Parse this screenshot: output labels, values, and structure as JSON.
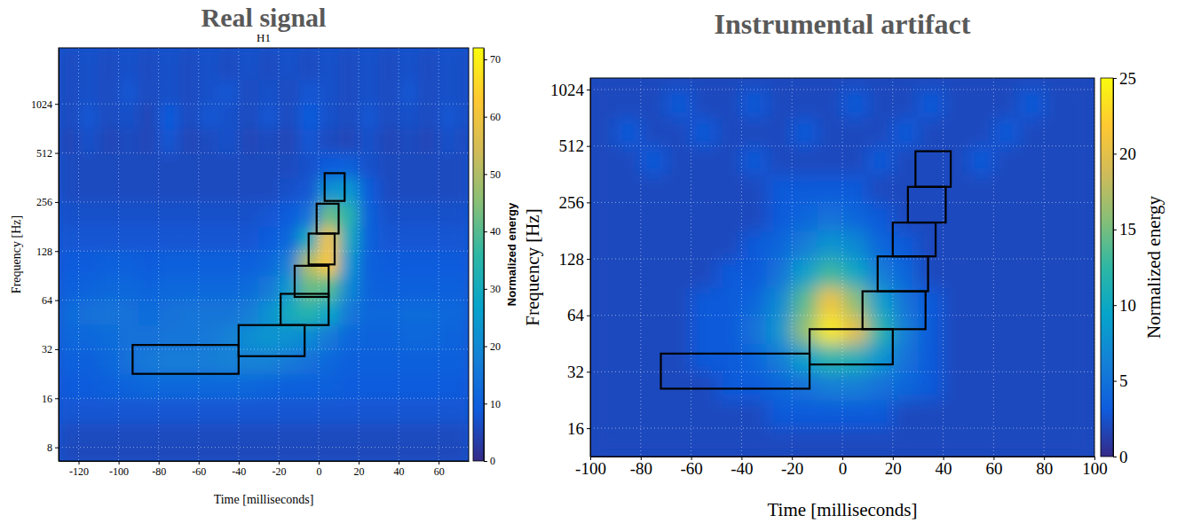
{
  "chart_data": [
    {
      "type": "heatmap",
      "title": "Real signal",
      "subtitle": "H1",
      "x_label": "Time [milliseconds]",
      "y_label": "Frequency [Hz]",
      "log": "y",
      "grid": true,
      "xlim": [
        -130,
        75
      ],
      "xticks": [
        -120,
        -100,
        -80,
        -60,
        -40,
        -20,
        0,
        20,
        40,
        60
      ],
      "ylim": [
        6.6,
        2260
      ],
      "yticks": [
        8,
        16,
        32,
        64,
        128,
        256,
        512,
        1024
      ],
      "xbins": [
        -130,
        -120,
        -110,
        -100,
        -90,
        -80,
        -70,
        -60,
        -50,
        -40,
        -30,
        -20,
        -10,
        0,
        10,
        20,
        30,
        40,
        50,
        60,
        70,
        75
      ],
      "ybins": [
        6.6,
        8,
        11.3,
        16,
        22.6,
        32,
        45.3,
        64,
        90.5,
        128,
        181,
        256,
        362,
        512,
        724,
        1024,
        1448,
        2260
      ],
      "cells": [
        [
          5,
          5,
          5,
          5,
          5,
          5,
          5,
          5,
          5,
          5,
          5,
          5,
          5,
          5,
          5,
          5,
          5,
          5,
          5,
          5,
          5
        ],
        [
          6,
          6,
          6,
          6,
          6,
          6,
          6,
          6,
          6,
          6,
          6,
          6,
          6,
          6,
          6,
          6,
          6,
          6,
          6,
          6,
          6
        ],
        [
          8,
          8,
          8,
          8,
          8,
          8,
          8,
          8,
          8,
          8,
          8,
          8,
          8,
          8,
          8,
          8,
          8,
          8,
          8,
          8,
          8
        ],
        [
          9,
          9,
          10,
          11,
          12,
          12,
          12,
          12,
          12,
          12,
          11,
          10,
          10,
          10,
          9,
          9,
          9,
          9,
          9,
          9,
          9
        ],
        [
          10,
          10,
          12,
          14,
          16,
          17,
          17,
          17,
          18,
          18,
          18,
          16,
          14,
          12,
          10,
          10,
          10,
          10,
          10,
          10,
          10
        ],
        [
          12,
          12,
          13,
          14,
          14,
          15,
          15,
          16,
          18,
          21,
          23,
          22,
          20,
          16,
          12,
          11,
          11,
          12,
          12,
          11,
          11
        ],
        [
          13,
          14,
          15,
          14,
          13,
          14,
          15,
          15,
          15,
          17,
          22,
          30,
          34,
          28,
          16,
          12,
          12,
          13,
          13,
          12,
          12
        ],
        [
          10,
          11,
          12,
          12,
          11,
          12,
          12,
          12,
          12,
          13,
          16,
          24,
          42,
          40,
          20,
          11,
          10,
          10,
          10,
          10,
          10
        ],
        [
          9,
          9,
          10,
          10,
          9,
          10,
          10,
          10,
          10,
          10,
          12,
          18,
          50,
          62,
          24,
          10,
          9,
          9,
          9,
          9,
          9
        ],
        [
          8,
          8,
          8,
          8,
          8,
          8,
          8,
          8,
          8,
          8,
          9,
          12,
          30,
          60,
          30,
          10,
          8,
          8,
          8,
          8,
          8
        ],
        [
          7,
          7,
          7,
          7,
          7,
          7,
          7,
          7,
          7,
          7,
          8,
          9,
          14,
          42,
          34,
          10,
          7,
          7,
          7,
          7,
          7
        ],
        [
          6,
          6,
          6,
          6,
          6,
          6,
          6,
          6,
          6,
          6,
          6,
          7,
          8,
          22,
          24,
          9,
          6,
          6,
          6,
          6,
          6
        ],
        [
          6,
          6,
          6,
          6,
          6,
          6,
          6,
          6,
          6,
          6,
          6,
          6,
          7,
          9,
          10,
          7,
          6,
          6,
          6,
          6,
          6
        ],
        [
          5,
          7,
          5,
          6,
          5,
          8,
          5,
          6,
          7,
          5,
          6,
          5,
          8,
          6,
          5,
          7,
          5,
          6,
          5,
          7,
          5
        ],
        [
          6,
          8,
          6,
          7,
          5,
          9,
          6,
          8,
          7,
          6,
          8,
          6,
          9,
          7,
          6,
          8,
          6,
          7,
          6,
          8,
          6
        ],
        [
          6,
          7,
          6,
          8,
          6,
          7,
          6,
          7,
          8,
          6,
          7,
          6,
          8,
          7,
          6,
          7,
          6,
          8,
          6,
          7,
          6
        ],
        [
          6,
          7,
          6,
          7,
          6,
          7,
          6,
          7,
          6,
          7,
          6,
          7,
          6,
          7,
          6,
          7,
          6,
          7,
          6,
          7,
          6
        ]
      ],
      "colorbar": {
        "label": "Normalized energy",
        "range": [
          0,
          72
        ],
        "ticks": [
          0,
          10,
          20,
          30,
          40,
          50,
          60,
          70
        ]
      },
      "boxes": [
        {
          "t0": -93,
          "t1": -40,
          "f0": 22.6,
          "f1": 34
        },
        {
          "t0": -40,
          "t1": -7,
          "f0": 29,
          "f1": 45
        },
        {
          "t0": -19,
          "t1": 5,
          "f0": 45,
          "f1": 70
        },
        {
          "t0": -12,
          "t1": 5,
          "f0": 67,
          "f1": 104
        },
        {
          "t0": -5,
          "t1": 8,
          "f0": 106,
          "f1": 164
        },
        {
          "t0": -1,
          "t1": 10,
          "f0": 164,
          "f1": 250
        },
        {
          "t0": 3,
          "t1": 13,
          "f0": 260,
          "f1": 385
        }
      ]
    },
    {
      "type": "heatmap",
      "title": "Instrumental artifact",
      "x_label": "Time [milliseconds]",
      "y_label": "Frequency [Hz]",
      "log": "y",
      "grid": true,
      "xlim": [
        -100,
        100
      ],
      "xticks": [
        -100,
        -80,
        -60,
        -40,
        -20,
        0,
        20,
        40,
        60,
        80,
        100
      ],
      "ylim": [
        11.3,
        1180
      ],
      "yticks": [
        16,
        32,
        64,
        128,
        256,
        512,
        1024
      ],
      "xbins": [
        -100,
        -90,
        -80,
        -70,
        -60,
        -50,
        -40,
        -30,
        -20,
        -10,
        0,
        10,
        20,
        30,
        40,
        50,
        60,
        70,
        80,
        90,
        100
      ],
      "ybins": [
        11.3,
        16,
        22.6,
        32,
        45.3,
        64,
        90.5,
        128,
        181,
        256,
        362,
        512,
        724,
        1024,
        1180
      ],
      "cells": [
        [
          2,
          2,
          2,
          2,
          2,
          2,
          2,
          2,
          2,
          2,
          2,
          2,
          2,
          2,
          2,
          2,
          2,
          2,
          2,
          2
        ],
        [
          2,
          2,
          2,
          2,
          2,
          2,
          2,
          3,
          3,
          3,
          3,
          3,
          2,
          2,
          2,
          2,
          2,
          2,
          2,
          2
        ],
        [
          2,
          2,
          2,
          2,
          2,
          3,
          3,
          4,
          5,
          6,
          6,
          5,
          4,
          3,
          2,
          2,
          2,
          2,
          2,
          2
        ],
        [
          2,
          2,
          2,
          2,
          3,
          3,
          4,
          6,
          9,
          12,
          11,
          8,
          5,
          3,
          2,
          2,
          2,
          2,
          2,
          2
        ],
        [
          2,
          2,
          2,
          2,
          3,
          3,
          5,
          8,
          16,
          24,
          20,
          12,
          6,
          3,
          2,
          2,
          2,
          2,
          2,
          2
        ],
        [
          2,
          2,
          2,
          2,
          3,
          3,
          4,
          7,
          14,
          21,
          16,
          9,
          5,
          3,
          2,
          2,
          2,
          2,
          2,
          2
        ],
        [
          2,
          2,
          2,
          2,
          2,
          3,
          3,
          5,
          9,
          13,
          10,
          6,
          4,
          2,
          2,
          2,
          2,
          2,
          2,
          2
        ],
        [
          2,
          2,
          2,
          2,
          2,
          2,
          3,
          4,
          6,
          8,
          7,
          4,
          3,
          2,
          2,
          2,
          2,
          2,
          2,
          2
        ],
        [
          2,
          2,
          2,
          2,
          2,
          2,
          2,
          3,
          4,
          5,
          4,
          3,
          2,
          2,
          2,
          2,
          2,
          2,
          2,
          2
        ],
        [
          2,
          2,
          2,
          2,
          2,
          2,
          2,
          3,
          3,
          3,
          3,
          2,
          2,
          2,
          2,
          2,
          2,
          2,
          2,
          2
        ],
        [
          2,
          2,
          3,
          2,
          2,
          2,
          3,
          2,
          2,
          2,
          2,
          3,
          2,
          2,
          2,
          3,
          2,
          2,
          2,
          2
        ],
        [
          2,
          3,
          2,
          2,
          3,
          2,
          2,
          2,
          3,
          2,
          2,
          2,
          3,
          2,
          2,
          2,
          3,
          2,
          2,
          2
        ],
        [
          2,
          2,
          2,
          3,
          2,
          2,
          3,
          2,
          2,
          2,
          3,
          2,
          2,
          3,
          2,
          2,
          2,
          3,
          2,
          2
        ],
        [
          2,
          2,
          2,
          2,
          2,
          2,
          2,
          2,
          2,
          2,
          2,
          2,
          2,
          2,
          2,
          2,
          2,
          2,
          2,
          2
        ]
      ],
      "colorbar": {
        "label": "Normalized energy",
        "range": [
          0,
          25
        ],
        "ticks": [
          0,
          5,
          10,
          15,
          20,
          25
        ]
      },
      "boxes": [
        {
          "t0": -72,
          "t1": -13,
          "f0": 26,
          "f1": 40
        },
        {
          "t0": -13,
          "t1": 20,
          "f0": 35,
          "f1": 54
        },
        {
          "t0": 8,
          "t1": 33,
          "f0": 54,
          "f1": 86
        },
        {
          "t0": 14,
          "t1": 34,
          "f0": 86,
          "f1": 132
        },
        {
          "t0": 20,
          "t1": 37,
          "f0": 132,
          "f1": 200
        },
        {
          "t0": 26,
          "t1": 41,
          "f0": 200,
          "f1": 310
        },
        {
          "t0": 29,
          "t1": 43,
          "f0": 310,
          "f1": 480
        }
      ]
    }
  ]
}
